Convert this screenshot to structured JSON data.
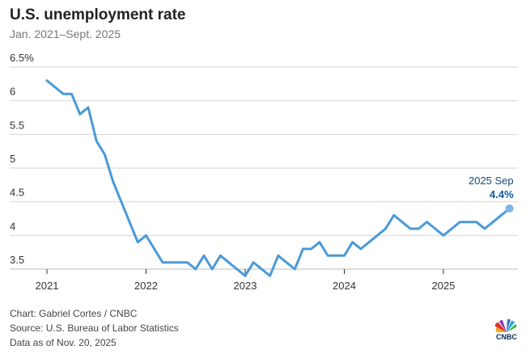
{
  "header": {
    "title": "U.S. unemployment rate",
    "subtitle": "Jan. 2021–Sept. 2025"
  },
  "chart_data": {
    "type": "line",
    "title": "U.S. unemployment rate",
    "subtitle": "Jan. 2021–Sept. 2025",
    "xlabel": "",
    "ylabel": "",
    "ylim": [
      3.5,
      6.5
    ],
    "yticks": [
      {
        "v": 6.5,
        "label": "6.5%"
      },
      {
        "v": 6,
        "label": "6"
      },
      {
        "v": 5.5,
        "label": "5.5"
      },
      {
        "v": 5,
        "label": "5"
      },
      {
        "v": 4.5,
        "label": "4.5"
      },
      {
        "v": 4,
        "label": "4"
      },
      {
        "v": 3.5,
        "label": "3.5"
      }
    ],
    "xticks": [
      "2021",
      "2022",
      "2023",
      "2024",
      "2025"
    ],
    "start": "2021-01",
    "frequency": "monthly",
    "grid": true,
    "color": "#4a9ad8",
    "series": [
      {
        "name": "Unemployment rate",
        "values": [
          6.3,
          6.2,
          6.1,
          6.1,
          5.8,
          5.9,
          5.4,
          5.2,
          4.8,
          4.5,
          4.2,
          3.9,
          4.0,
          3.8,
          3.6,
          3.6,
          3.6,
          3.6,
          3.5,
          3.7,
          3.5,
          3.7,
          3.6,
          3.5,
          3.4,
          3.6,
          3.5,
          3.4,
          3.7,
          3.6,
          3.5,
          3.8,
          3.8,
          3.9,
          3.7,
          3.7,
          3.7,
          3.9,
          3.8,
          3.9,
          4.0,
          4.1,
          4.3,
          4.2,
          4.1,
          4.1,
          4.2,
          4.1,
          4.0,
          4.1,
          4.2,
          4.2,
          4.2,
          4.1,
          4.2,
          4.3,
          4.4
        ]
      }
    ],
    "annotation": {
      "label": "2025 Sep",
      "value": "4.4%"
    }
  },
  "footer": {
    "credit": "Chart: Gabriel Cortes / CNBC",
    "source": "Source: U.S. Bureau of Labor Statistics",
    "asof": "Data as of Nov. 20, 2025",
    "logo": "CNBC"
  }
}
